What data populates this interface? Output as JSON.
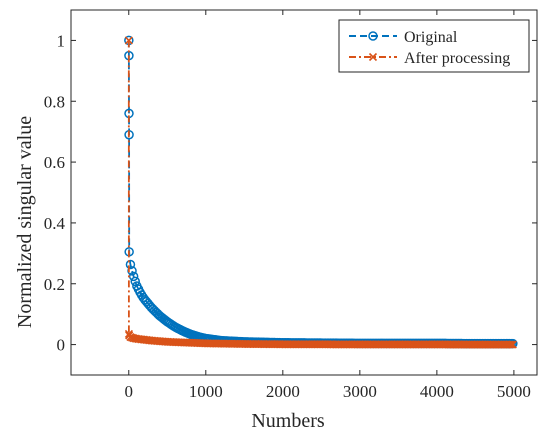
{
  "chart_data": {
    "type": "line",
    "title": "",
    "xlabel": "Numbers",
    "ylabel": "Normalized singular value",
    "xlim": [
      -750,
      5300
    ],
    "ylim": [
      -0.1,
      1.1
    ],
    "xticks": [
      0,
      1000,
      2000,
      3000,
      4000,
      5000
    ],
    "yticks": [
      0,
      0.2,
      0.4,
      0.6,
      0.8,
      1
    ],
    "x_tick_labels": [
      "0",
      "1000",
      "2000",
      "3000",
      "4000",
      "5000"
    ],
    "y_tick_labels": [
      "0",
      "0.2",
      "0.4",
      "0.6",
      "0.8",
      "1"
    ],
    "grid": false,
    "legend_position": "top-right",
    "series": [
      {
        "name": "Original",
        "color": "#0072BD",
        "marker": "circle",
        "line_style": "dashed",
        "x": [
          1,
          2,
          3,
          4,
          5,
          10,
          20,
          50,
          100,
          150,
          200,
          300,
          400,
          500,
          600,
          700,
          800,
          900,
          1000,
          1200,
          1500,
          2000,
          2500,
          3000,
          3500,
          4000,
          4500,
          5000
        ],
        "y": [
          1.0,
          0.95,
          0.76,
          0.69,
          0.305,
          0.29,
          0.265,
          0.235,
          0.195,
          0.17,
          0.15,
          0.12,
          0.095,
          0.075,
          0.058,
          0.045,
          0.034,
          0.026,
          0.02,
          0.013,
          0.009,
          0.006,
          0.005,
          0.004,
          0.004,
          0.004,
          0.003,
          0.003
        ]
      },
      {
        "name": "After processing",
        "color": "#D95319",
        "marker": "x",
        "line_style": "dashdot",
        "x": [
          1,
          2,
          5,
          10,
          20,
          50,
          100,
          200,
          300,
          400,
          500,
          600,
          800,
          1000,
          1500,
          2000,
          3000,
          4000,
          5000
        ],
        "y": [
          1.0,
          0.035,
          0.03,
          0.027,
          0.025,
          0.022,
          0.019,
          0.016,
          0.013,
          0.011,
          0.009,
          0.008,
          0.006,
          0.004,
          0.002,
          0.001,
          0.0005,
          0.0003,
          0.0002
        ]
      }
    ]
  }
}
